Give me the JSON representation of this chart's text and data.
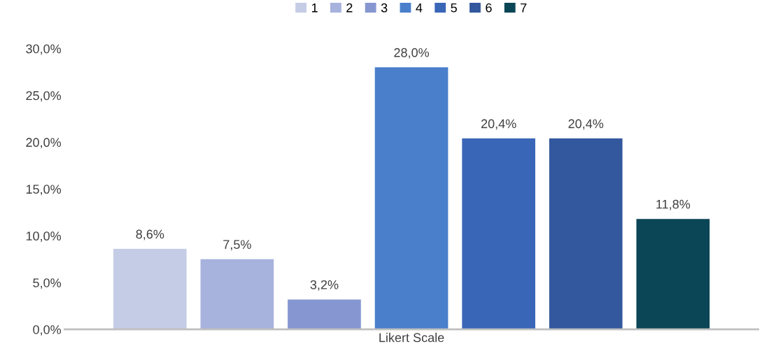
{
  "chart_data": {
    "type": "bar",
    "categories": [
      "Likert Scale"
    ],
    "series": [
      {
        "name": "1",
        "color": "#c5cce6",
        "values": [
          8.6
        ],
        "value_labels": [
          "8,6%"
        ]
      },
      {
        "name": "2",
        "color": "#a7b2dd",
        "values": [
          7.5
        ],
        "value_labels": [
          "7,5%"
        ]
      },
      {
        "name": "3",
        "color": "#8696d0",
        "values": [
          3.2
        ],
        "value_labels": [
          "3,2%"
        ]
      },
      {
        "name": "4",
        "color": "#4a7fcc",
        "values": [
          28.0
        ],
        "value_labels": [
          "28,0%"
        ]
      },
      {
        "name": "5",
        "color": "#3a66b8",
        "values": [
          20.4
        ],
        "value_labels": [
          "20,4%"
        ]
      },
      {
        "name": "6",
        "color": "#33589e",
        "values": [
          20.4
        ],
        "value_labels": [
          "20,4%"
        ]
      },
      {
        "name": "7",
        "color": "#0b4656",
        "values": [
          11.8
        ],
        "value_labels": [
          "11,8%"
        ]
      }
    ],
    "ylim": [
      0,
      30
    ],
    "yticks": [
      {
        "value": 0,
        "label": "0,0%"
      },
      {
        "value": 5,
        "label": "5,0%"
      },
      {
        "value": 10,
        "label": "10,0%"
      },
      {
        "value": 15,
        "label": "15,0%"
      },
      {
        "value": 20,
        "label": "20,0%"
      },
      {
        "value": 25,
        "label": "25,0%"
      },
      {
        "value": 30,
        "label": "30,0%"
      }
    ],
    "grid": false,
    "legend": "top"
  }
}
